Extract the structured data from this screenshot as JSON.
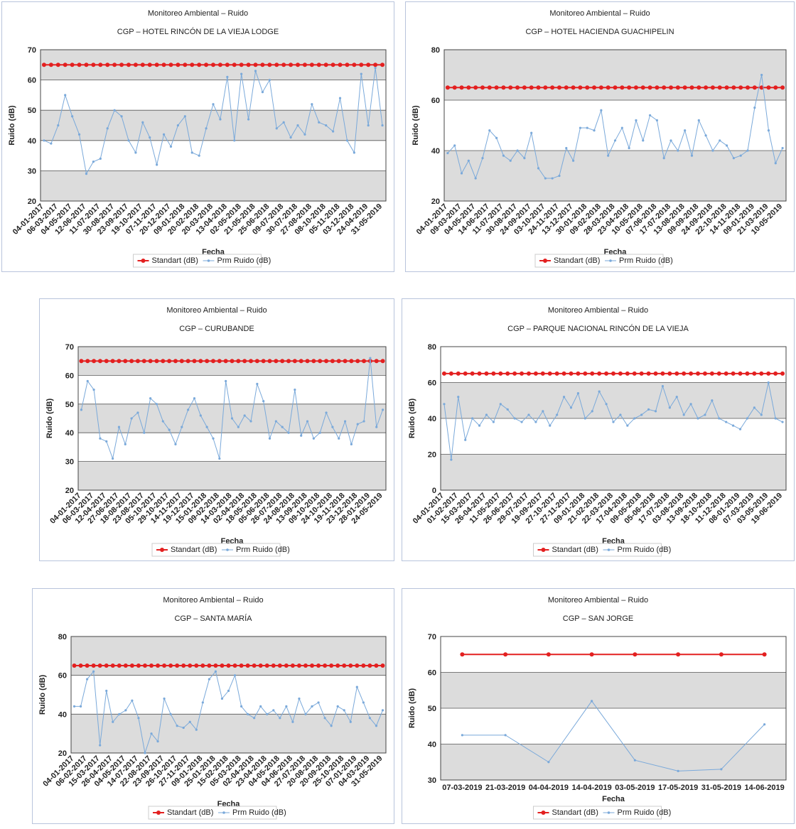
{
  "chart_data": [
    {
      "type": "line",
      "title": "Monitoreo Ambiental – Ruido",
      "subtitle": "CGP – HOTEL RINCÓN DE LA VIEJA LODGE",
      "x_label": "Fecha",
      "y_label": "Ruido (dB)",
      "categories": [
        "04-01-2017",
        null,
        "06-03-2017",
        null,
        "04-05-2017",
        null,
        "12-06-2017",
        null,
        "11-07-2017",
        null,
        "30-08-2017",
        null,
        "23-09-2017",
        null,
        "19-10-2017",
        null,
        "07-11-2017",
        null,
        "20-12-2017",
        null,
        "09-01-2018",
        null,
        "20-02-2018",
        null,
        "20-03-2018",
        null,
        "13-04-2018",
        null,
        "02-05-2018",
        null,
        "21-05-2018",
        null,
        "25-06-2018",
        null,
        "09-07-2018",
        null,
        "30-07-2018",
        null,
        "27-08-2018",
        null,
        "08-10-2018",
        null,
        "05-11-2018",
        null,
        "03-12-2018",
        null,
        "24-04-2019",
        null,
        "31-05-2019"
      ],
      "series": [
        {
          "name": "Standart (dB)",
          "color": "#e32020",
          "values": [
            65,
            65,
            65,
            65,
            65,
            65,
            65,
            65,
            65,
            65,
            65,
            65,
            65,
            65,
            65,
            65,
            65,
            65,
            65,
            65,
            65,
            65,
            65,
            65,
            65,
            65,
            65,
            65,
            65,
            65,
            65,
            65,
            65,
            65,
            65,
            65,
            65,
            65,
            65,
            65,
            65,
            65,
            65,
            65,
            65,
            65,
            65,
            65,
            65
          ]
        },
        {
          "name": "Prm Ruido (dB)",
          "color": "#7aa9da",
          "values": [
            40,
            39,
            45,
            55,
            48,
            42,
            29,
            33,
            34,
            44,
            50,
            48,
            40,
            36,
            46,
            41,
            32,
            42,
            38,
            45,
            48,
            36,
            35,
            44,
            52,
            47,
            61,
            40,
            62,
            47,
            63,
            56,
            60,
            44,
            46,
            41,
            45,
            42,
            52,
            46,
            45,
            43,
            54,
            40,
            36,
            62,
            45,
            64,
            45
          ]
        }
      ],
      "ylim": [
        20,
        70
      ],
      "yticks": [
        20,
        30,
        40,
        50,
        60,
        70
      ],
      "grid": true
    },
    {
      "type": "line",
      "title": "Monitoreo Ambiental – Ruido",
      "subtitle": "CGP – HOTEL HACIENDA GUACHIPELIN",
      "x_label": "Fecha",
      "y_label": "Ruido (dB)",
      "categories": [
        "04-01-2017",
        null,
        "09-03-2017",
        null,
        "04-05-2017",
        null,
        "14-06-2017",
        null,
        "11-07-2017",
        null,
        "30-08-2017",
        null,
        "24-09-2017",
        null,
        "03-10-2017",
        null,
        "24-11-2017",
        null,
        "13-12-2017",
        null,
        "30-01-2018",
        null,
        "09-02-2018",
        null,
        "28-03-2018",
        null,
        "23-04-2018",
        null,
        "10-05-2018",
        null,
        "07-06-2018",
        null,
        "17-07-2018",
        null,
        "13-08-2018",
        null,
        "09-09-2018",
        null,
        "24-09-2018",
        null,
        "22-10-2018",
        null,
        "14-11-2018",
        null,
        "09-01-2019",
        null,
        "21-03-2019",
        null,
        "10-05-2019"
      ],
      "series": [
        {
          "name": "Standart (dB)",
          "color": "#e32020",
          "values": [
            65,
            65,
            65,
            65,
            65,
            65,
            65,
            65,
            65,
            65,
            65,
            65,
            65,
            65,
            65,
            65,
            65,
            65,
            65,
            65,
            65,
            65,
            65,
            65,
            65,
            65,
            65,
            65,
            65,
            65,
            65,
            65,
            65,
            65,
            65,
            65,
            65,
            65,
            65,
            65,
            65,
            65,
            65,
            65,
            65,
            65,
            65,
            65,
            65
          ]
        },
        {
          "name": "Prm Ruido (dB)",
          "color": "#7aa9da",
          "values": [
            39,
            42,
            31,
            36,
            29,
            37,
            48,
            45,
            38,
            36,
            40,
            37,
            47,
            33,
            29,
            29,
            30,
            41,
            36,
            49,
            49,
            48,
            56,
            38,
            44,
            49,
            41,
            52,
            44,
            54,
            52,
            37,
            44,
            40,
            48,
            38,
            52,
            46,
            40,
            44,
            42,
            37,
            38,
            40,
            57,
            70,
            48,
            35,
            41
          ]
        }
      ],
      "ylim": [
        20,
        80
      ],
      "yticks": [
        20,
        40,
        60,
        80
      ],
      "grid": true
    },
    {
      "type": "line",
      "title": "Monitoreo Ambiental – Ruido",
      "subtitle": "CGP – CURUBANDE",
      "x_label": "Fecha",
      "y_label": "Ruido (dB)",
      "categories": [
        "04-01-2017",
        null,
        "06-03-2017",
        null,
        "12-04-2017",
        null,
        "27-06-2017",
        null,
        "18-08-2017",
        null,
        "23-08-2017",
        null,
        "05-10-2017",
        null,
        "29-10-2017",
        null,
        "14-11-2017",
        null,
        "19-12-2017",
        null,
        "15-01-2018",
        null,
        "09-02-2018",
        null,
        "14-03-2018",
        null,
        "02-04-2018",
        null,
        "18-05-2018",
        null,
        "05-06-2018",
        null,
        "26-07-2018",
        null,
        "24-08-2018",
        null,
        "13-09-2018",
        null,
        "09-10-2018",
        null,
        "24-10-2018",
        null,
        "19-11-2018",
        null,
        "23-12-2018",
        null,
        "28-01-2019",
        null,
        "24-05-2019"
      ],
      "series": [
        {
          "name": "Standart (dB)",
          "color": "#e32020",
          "values": [
            65,
            65,
            65,
            65,
            65,
            65,
            65,
            65,
            65,
            65,
            65,
            65,
            65,
            65,
            65,
            65,
            65,
            65,
            65,
            65,
            65,
            65,
            65,
            65,
            65,
            65,
            65,
            65,
            65,
            65,
            65,
            65,
            65,
            65,
            65,
            65,
            65,
            65,
            65,
            65,
            65,
            65,
            65,
            65,
            65,
            65,
            65,
            65,
            65
          ]
        },
        {
          "name": "Prm Ruido (dB)",
          "color": "#7aa9da",
          "values": [
            48,
            58,
            55,
            38,
            37,
            31,
            42,
            36,
            45,
            47,
            40,
            52,
            50,
            44,
            41,
            36,
            42,
            48,
            52,
            46,
            42,
            38,
            31,
            58,
            45,
            42,
            46,
            44,
            57,
            51,
            38,
            44,
            42,
            40,
            55,
            39,
            44,
            38,
            40,
            47,
            42,
            38,
            44,
            36,
            43,
            44,
            66,
            42,
            48
          ]
        }
      ],
      "ylim": [
        20,
        70
      ],
      "yticks": [
        20,
        30,
        40,
        50,
        60,
        70
      ],
      "grid": true
    },
    {
      "type": "line",
      "title": "Monitoreo Ambiental – Ruido",
      "subtitle": "CGP – PARQUE NACIONAL RINCÓN DE LA VIEJA",
      "x_label": "Fecha",
      "y_label": "Ruido (dB)",
      "categories": [
        "04-01-2017",
        null,
        "01-02-2017",
        null,
        "15-03-2017",
        null,
        "26-04-2017",
        null,
        "11-05-2017",
        null,
        "26-06-2017",
        null,
        "29-07-2017",
        null,
        "19-09-2017",
        null,
        "27-10-2017",
        null,
        "27-11-2017",
        null,
        "09-01-2018",
        null,
        "21-02-2018",
        null,
        "22-03-2018",
        null,
        "17-04-2018",
        null,
        "09-05-2018",
        null,
        "05-06-2018",
        null,
        "17-07-2018",
        null,
        "03-08-2018",
        null,
        "13-09-2018",
        null,
        "18-10-2018",
        null,
        "11-12-2018",
        null,
        "08-01-2019",
        null,
        "07-03-2019",
        null,
        "03-05-2019",
        null,
        "19-06-2019"
      ],
      "series": [
        {
          "name": "Standart (dB)",
          "color": "#e32020",
          "values": [
            65,
            65,
            65,
            65,
            65,
            65,
            65,
            65,
            65,
            65,
            65,
            65,
            65,
            65,
            65,
            65,
            65,
            65,
            65,
            65,
            65,
            65,
            65,
            65,
            65,
            65,
            65,
            65,
            65,
            65,
            65,
            65,
            65,
            65,
            65,
            65,
            65,
            65,
            65,
            65,
            65,
            65,
            65,
            65,
            65,
            65,
            65,
            65,
            65
          ]
        },
        {
          "name": "Prm Ruido (dB)",
          "color": "#7aa9da",
          "values": [
            48,
            17,
            52,
            28,
            40,
            36,
            42,
            38,
            48,
            45,
            40,
            38,
            42,
            38,
            44,
            36,
            42,
            52,
            46,
            54,
            40,
            44,
            55,
            48,
            38,
            42,
            36,
            40,
            42,
            45,
            44,
            58,
            46,
            52,
            42,
            48,
            40,
            42,
            50,
            40,
            38,
            36,
            34,
            40,
            46,
            42,
            60,
            40,
            38
          ]
        }
      ],
      "ylim": [
        0,
        80
      ],
      "yticks": [
        0,
        20,
        40,
        60,
        80
      ],
      "grid": true
    },
    {
      "type": "line",
      "title": "Monitoreo Ambiental – Ruido",
      "subtitle": "CGP – SANTA MARÍA",
      "x_label": "Fecha",
      "y_label": "Ruido (dB)",
      "categories": [
        "04-01-2017",
        null,
        "06-02-2017",
        null,
        "15-03-2017",
        null,
        "26-04-2017",
        null,
        "04-05-2017",
        null,
        "14-07-2017",
        null,
        "22-08-2017",
        null,
        "23-09-2017",
        null,
        "26-10-2017",
        null,
        "27-11-2017",
        null,
        "09-01-2018",
        null,
        "25-01-2018",
        null,
        "15-02-2018",
        null,
        "05-03-2018",
        null,
        "02-04-2018",
        null,
        "23-04-2018",
        null,
        "04-05-2018",
        null,
        "04-06-2018",
        null,
        "27-07-2018",
        null,
        "20-08-2018",
        null,
        "20-09-2018",
        null,
        "25-10-2018",
        null,
        "07-01-2019",
        null,
        "04-03-2019",
        null,
        "31-05-2019"
      ],
      "series": [
        {
          "name": "Standart (dB)",
          "color": "#e32020",
          "values": [
            65,
            65,
            65,
            65,
            65,
            65,
            65,
            65,
            65,
            65,
            65,
            65,
            65,
            65,
            65,
            65,
            65,
            65,
            65,
            65,
            65,
            65,
            65,
            65,
            65,
            65,
            65,
            65,
            65,
            65,
            65,
            65,
            65,
            65,
            65,
            65,
            65,
            65,
            65,
            65,
            65,
            65,
            65,
            65,
            65,
            65,
            65,
            65,
            65
          ]
        },
        {
          "name": "Prm Ruido (dB)",
          "color": "#7aa9da",
          "values": [
            44,
            44,
            58,
            62,
            24,
            52,
            36,
            40,
            42,
            47,
            38,
            20,
            30,
            26,
            48,
            40,
            34,
            33,
            36,
            32,
            46,
            58,
            62,
            48,
            52,
            60,
            44,
            40,
            38,
            44,
            40,
            42,
            38,
            44,
            36,
            48,
            40,
            44,
            46,
            38,
            34,
            44,
            42,
            36,
            54,
            46,
            38,
            34,
            42
          ]
        }
      ],
      "ylim": [
        20,
        80
      ],
      "yticks": [
        20,
        40,
        60,
        80
      ],
      "grid": true
    },
    {
      "type": "line",
      "title": "Monitoreo Ambiental – Ruido",
      "subtitle": "CGP – SAN JORGE",
      "x_label": "Fecha",
      "y_label": "Ruido (dB)",
      "categories": [
        "07-03-2019",
        "21-03-2019",
        "04-04-2019",
        "14-04-2019",
        "03-05-2019",
        "17-05-2019",
        "31-05-2019",
        "14-06-2019"
      ],
      "series": [
        {
          "name": "Standart (dB)",
          "color": "#e32020",
          "values": [
            65,
            65,
            65,
            65,
            65,
            65,
            65,
            65
          ]
        },
        {
          "name": "Prm Ruido (dB)",
          "color": "#7aa9da",
          "values": [
            42.5,
            42.5,
            35,
            52,
            35.5,
            32.5,
            33,
            45.5
          ]
        }
      ],
      "ylim": [
        30,
        70
      ],
      "yticks": [
        30,
        40,
        50,
        60,
        70
      ],
      "grid": true
    }
  ]
}
